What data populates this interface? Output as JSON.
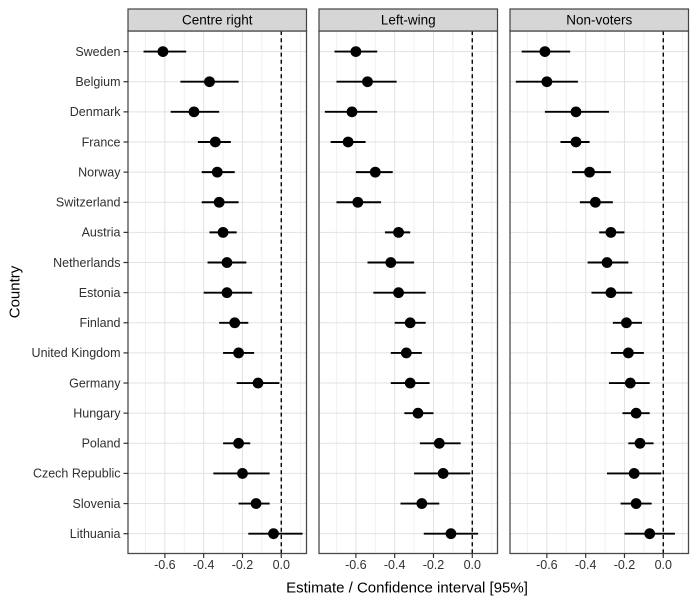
{
  "figure": {
    "x_axis_title": "Estimate / Confidence interval [95%]",
    "y_axis_title": "Country"
  },
  "chart_data": {
    "type": "scatter",
    "subtype": "faceted dot-and-whisker (forest) plot, 95% confidence intervals",
    "title": "",
    "xlabel": "Estimate / Confidence interval [95%]",
    "ylabel": "Country",
    "legend": "none",
    "grid": "light gray vertical major+minor gridlines every 0.1, horizontal gridline per country row",
    "x_domain": [
      -0.79,
      0.13
    ],
    "x_ticks": [
      -0.6,
      -0.4,
      -0.2,
      0.0
    ],
    "x_tick_labels": [
      "-0.6",
      "-0.4",
      "-0.2",
      "0.0"
    ],
    "x_minor_gridlines": [
      -0.7,
      -0.5,
      -0.3,
      -0.1,
      0.1
    ],
    "zero_reference_line": 0.0,
    "categories": [
      "Sweden",
      "Belgium",
      "Denmark",
      "France",
      "Norway",
      "Switzerland",
      "Austria",
      "Netherlands",
      "Estonia",
      "Finland",
      "United Kingdom",
      "Germany",
      "Hungary",
      "Poland",
      "Czech Republic",
      "Slovenia",
      "Lithuania"
    ],
    "facets": [
      {
        "label": "Centre right",
        "estimates": [
          -0.61,
          -0.37,
          -0.45,
          -0.34,
          -0.33,
          -0.32,
          -0.3,
          -0.28,
          -0.28,
          -0.24,
          -0.22,
          -0.12,
          null,
          -0.22,
          -0.2,
          -0.13,
          -0.04
        ],
        "ci_low": [
          -0.71,
          -0.52,
          -0.57,
          -0.43,
          -0.41,
          -0.41,
          -0.37,
          -0.38,
          -0.4,
          -0.32,
          -0.3,
          -0.23,
          null,
          -0.3,
          -0.35,
          -0.22,
          -0.17
        ],
        "ci_high": [
          -0.49,
          -0.22,
          -0.32,
          -0.26,
          -0.24,
          -0.22,
          -0.23,
          -0.18,
          -0.15,
          -0.17,
          -0.14,
          -0.01,
          null,
          -0.16,
          -0.06,
          -0.06,
          0.11
        ]
      },
      {
        "label": "Left-wing",
        "estimates": [
          -0.6,
          -0.54,
          -0.62,
          -0.64,
          -0.5,
          -0.59,
          -0.38,
          -0.42,
          -0.38,
          -0.32,
          -0.34,
          -0.32,
          -0.28,
          -0.17,
          -0.15,
          -0.26,
          -0.11
        ],
        "ci_low": [
          -0.71,
          -0.7,
          -0.76,
          -0.73,
          -0.6,
          -0.7,
          -0.45,
          -0.54,
          -0.51,
          -0.4,
          -0.42,
          -0.42,
          -0.35,
          -0.27,
          -0.3,
          -0.37,
          -0.25
        ],
        "ci_high": [
          -0.49,
          -0.39,
          -0.49,
          -0.55,
          -0.41,
          -0.47,
          -0.32,
          -0.3,
          -0.24,
          -0.24,
          -0.26,
          -0.22,
          -0.2,
          -0.06,
          -0.01,
          -0.17,
          0.03
        ]
      },
      {
        "label": "Non-voters",
        "estimates": [
          -0.61,
          -0.6,
          -0.45,
          -0.45,
          -0.38,
          -0.35,
          -0.27,
          -0.29,
          -0.27,
          -0.19,
          -0.18,
          -0.17,
          -0.14,
          -0.12,
          -0.15,
          -0.14,
          -0.07
        ],
        "ci_low": [
          -0.73,
          -0.76,
          -0.61,
          -0.53,
          -0.47,
          -0.43,
          -0.33,
          -0.39,
          -0.37,
          -0.26,
          -0.27,
          -0.28,
          -0.21,
          -0.18,
          -0.29,
          -0.22,
          -0.2
        ],
        "ci_high": [
          -0.48,
          -0.44,
          -0.28,
          -0.38,
          -0.27,
          -0.26,
          -0.2,
          -0.18,
          -0.16,
          -0.11,
          -0.1,
          -0.07,
          -0.07,
          -0.05,
          -0.01,
          -0.06,
          0.06
        ]
      }
    ]
  },
  "colors": {
    "background": "#ffffff",
    "point": "#000000",
    "ci_line": "#000000",
    "zero_line": "#000000",
    "strip_bg": "#d6d6d6",
    "strip_border": "#424242",
    "panel_border": "#4a4a4a",
    "grid_major": "#e2e2e2",
    "grid_minor": "#f1f1f1",
    "axis_text": "#303030",
    "tick_mark": "#333333",
    "strip_text": "#000000"
  }
}
